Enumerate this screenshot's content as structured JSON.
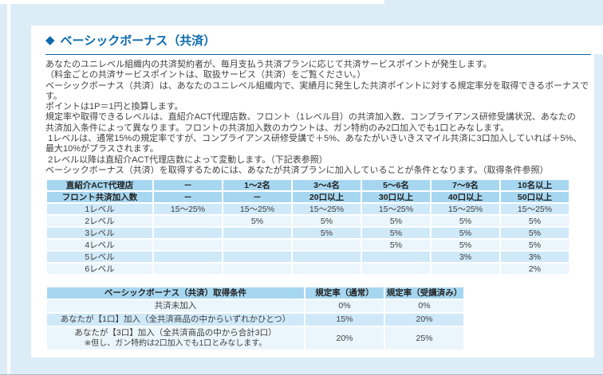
{
  "page": {
    "title": "ベーシックボーナス（共済）",
    "title_icon": "◆"
  },
  "intro": {
    "lines": [
      "あなたのユニレベル組織内の共済契約者が、毎月支払う共済プランに応じて共済サービスポイントが発生します。",
      "（料金ごとの共済サービスポイントは、取扱サービス（共済）をご覧ください。）",
      "ベーシックボーナス（共済）は、あなたのユニレベル組織内で、実績月に発生した共済ポイントに対する規定率分を取得できるボーナスです。",
      "ポイントは1P＝1円と換算します。",
      "規定率や取得できるレベルは、直紹介ACT代理店数、フロント（1レベル目）の共済加入数、コンプライアンス研修受講状況、あなたの",
      "共済加入条件によって異なります。フロントの共済加入数のカウントは、ガン特約のみ2口加入でも1口とみなします。",
      " 1レベルは、通常15%の規定率ですが、コンプライアンス研修受講で＋5%、あなたがいきいきスマイル共済に3口加入していれば＋5%、",
      "最大10%がプラスされます。",
      " 2レベル以降は直紹介ACT代理店数によって変動します。（下記表参照）",
      "ベーシックボーナス（共済）を取得するためには、あなたが共済プランに加入していることが条件となります。（取得条件参照）"
    ]
  },
  "rate_table": {
    "header_rows": [
      {
        "label": "直紹介ACT代理店",
        "cells": [
          "－",
          "1～2名",
          "3～4名",
          "5～6名",
          "7～9名",
          "10名以上"
        ]
      },
      {
        "label": "フロント共済加入数",
        "cells": [
          "－",
          "－",
          "20口以上",
          "30口以上",
          "40口以上",
          "50口以上"
        ]
      }
    ],
    "rows": [
      {
        "label": "1レベル",
        "cells": [
          "15～25%",
          "15～25%",
          "15～25%",
          "15～25%",
          "15～25%",
          "15～25%"
        ]
      },
      {
        "label": "2レベル",
        "cells": [
          "",
          "5%",
          "5%",
          "5%",
          "5%",
          "5%"
        ]
      },
      {
        "label": "3レベル",
        "cells": [
          "",
          "",
          "5%",
          "5%",
          "5%",
          "5%"
        ]
      },
      {
        "label": "4レベル",
        "cells": [
          "",
          "",
          "",
          "5%",
          "5%",
          "5%"
        ]
      },
      {
        "label": "5レベル",
        "cells": [
          "",
          "",
          "",
          "",
          "3%",
          "3%"
        ]
      },
      {
        "label": "6レベル",
        "cells": [
          "",
          "",
          "",
          "",
          "",
          "2%"
        ]
      }
    ]
  },
  "conditions_table": {
    "headers": [
      "ベーシックボーナス（共済）取得条件",
      "規定率（通常）",
      "規定率（受講済み）"
    ],
    "rows": [
      {
        "condition": "共済未加入",
        "note": "",
        "normal": "0%",
        "trained": "0%"
      },
      {
        "condition": "あなたが【1口】加入（全共済商品の中からいずれかひとつ）",
        "note": "",
        "normal": "15%",
        "trained": "20%"
      },
      {
        "condition": "あなたが【3口】加入（全共済商品の中から合計3口）",
        "note": "※但し、ガン特約は2口加入でも1口とみなします。",
        "normal": "20%",
        "trained": "25%"
      }
    ]
  },
  "colors": {
    "accent_blue": "#0a6aad",
    "table_header_bg": "#a7d7f0",
    "row_medium_bg": "#cfe9f8",
    "row_light_bg": "#eaf5fc",
    "page_background": "#dcedf7",
    "card_background": "#ffffff",
    "body_text": "#404040"
  }
}
